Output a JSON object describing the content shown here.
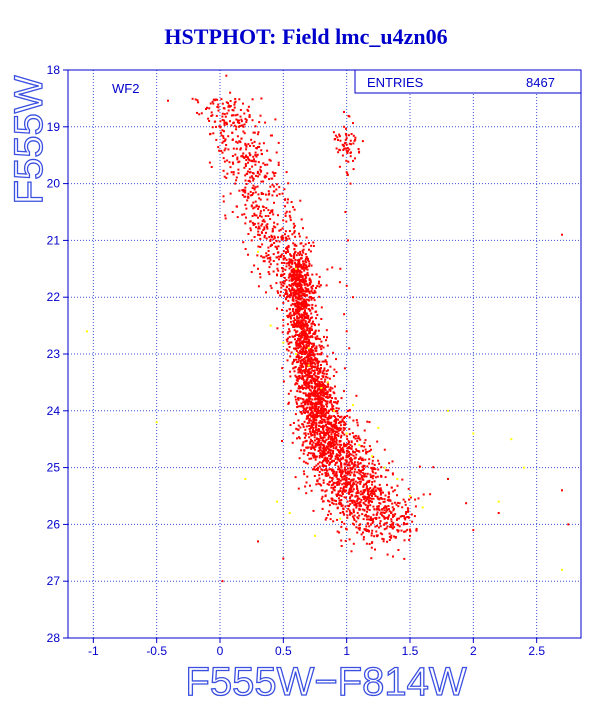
{
  "chart_data": {
    "type": "scatter",
    "title": "HSTPHOT: Field lmc_u4zn06",
    "xlabel": "F555W−F814W",
    "ylabel": "F555W",
    "panel_label": "WF2",
    "stats_box": {
      "label": "ENTRIES",
      "value": "8467"
    },
    "xlim": [
      -1.2,
      2.85
    ],
    "ylim": [
      18,
      28
    ],
    "y_inverted": true,
    "grid": true,
    "grid_style": "dotted",
    "x_ticks": [
      -1,
      -0.5,
      0,
      0.5,
      1,
      1.5,
      2,
      2.5
    ],
    "y_ticks": [
      18,
      19,
      20,
      21,
      22,
      23,
      24,
      25,
      26,
      27,
      28
    ],
    "colors": {
      "axis": "#0000cc",
      "grid": "#3b4fe0",
      "primary_points": "#ff0000",
      "secondary_points": "#ffff00"
    },
    "series": [
      {
        "color": "#ff0000",
        "x": [
          0.05,
          0.08,
          0.1,
          0.15,
          0.2,
          0.25,
          0.05,
          0.12,
          0.18,
          0.25,
          0.3,
          0.35,
          0.1,
          0.2,
          0.3,
          0.4,
          0.45,
          0.5,
          0.25,
          0.35,
          0.45,
          0.5,
          0.55,
          0.3,
          0.4,
          0.5,
          0.55,
          0.6,
          0.45,
          0.5,
          0.55,
          0.6,
          0.65,
          0.5,
          0.55,
          0.6,
          0.65,
          0.7,
          0.55,
          0.6,
          0.65,
          0.7,
          0.75,
          0.6,
          0.65,
          0.7,
          0.75,
          0.8,
          0.65,
          0.7,
          0.75,
          0.8,
          0.85,
          0.7,
          0.75,
          0.8,
          0.85,
          0.9,
          0.95,
          0.75,
          0.8,
          0.85,
          0.9,
          1.0,
          1.05,
          0.85,
          0.9,
          1.0,
          1.1,
          1.2,
          0.9,
          1.0,
          1.1,
          1.2,
          1.3,
          1.0,
          1.1,
          1.2,
          1.3,
          1.4,
          1.1,
          1.2,
          1.3,
          1.4,
          1.5,
          1.2,
          1.3,
          1.4,
          1.5,
          1.35,
          1.45,
          1.55,
          0.98,
          1.0,
          1.02,
          1.05,
          1.0,
          1.03,
          0.99,
          1.01,
          0.95,
          1.0,
          1.05,
          0.98,
          1.0,
          1.02,
          0.6,
          0.62,
          0.64,
          0.66,
          0.58,
          0.61,
          0.63,
          0.67,
          0.69,
          0.71,
          0.73,
          0.77,
          0.79,
          0.81,
          0.83,
          0.87,
          0.72,
          0.76,
          0.78,
          0.82,
          0.88,
          0.92,
          0.94,
          0.96,
          2.7,
          2.7,
          2.75,
          2.2,
          2.0,
          1.8,
          0.02,
          0.3,
          0.5
        ],
        "y": [
          18.1,
          18.4,
          18.8,
          19.0,
          19.3,
          19.6,
          19.9,
          20.0,
          20.2,
          20.4,
          20.6,
          20.8,
          20.5,
          20.7,
          20.9,
          21.1,
          21.3,
          21.5,
          21.0,
          21.3,
          21.6,
          21.8,
          22.0,
          21.5,
          21.8,
          22.1,
          22.3,
          22.5,
          22.2,
          22.4,
          22.6,
          22.8,
          23.0,
          22.5,
          22.7,
          22.9,
          23.1,
          23.3,
          22.8,
          23.0,
          23.2,
          23.4,
          23.6,
          23.1,
          23.3,
          23.5,
          23.7,
          23.9,
          23.4,
          23.6,
          23.8,
          24.0,
          24.2,
          23.7,
          23.9,
          24.1,
          24.3,
          24.5,
          24.7,
          24.0,
          24.2,
          24.4,
          24.6,
          24.8,
          25.0,
          24.3,
          24.5,
          24.8,
          25.1,
          25.3,
          24.6,
          24.9,
          25.2,
          25.4,
          25.6,
          24.9,
          25.2,
          25.5,
          25.7,
          25.9,
          25.2,
          25.5,
          25.8,
          26.0,
          26.1,
          25.6,
          25.9,
          26.1,
          26.2,
          25.8,
          26.0,
          26.1,
          19.0,
          19.2,
          19.4,
          19.6,
          19.8,
          20.0,
          20.5,
          21.0,
          21.5,
          21.8,
          22.0,
          22.3,
          22.6,
          22.9,
          21.8,
          22.0,
          22.2,
          22.4,
          21.6,
          22.6,
          22.8,
          23.0,
          23.2,
          23.4,
          23.6,
          23.8,
          24.0,
          24.2,
          24.4,
          24.6,
          24.1,
          24.3,
          24.5,
          24.7,
          24.9,
          25.1,
          25.3,
          25.5,
          20.9,
          25.4,
          26.0,
          25.8,
          26.1,
          25.2,
          27.0,
          26.3,
          26.6
        ]
      },
      {
        "color": "#ffff00",
        "x": [
          0.3,
          0.4,
          0.5,
          0.6,
          0.7,
          0.8,
          0.9,
          1.0,
          1.1,
          1.2,
          1.3,
          1.4,
          1.5,
          1.6,
          1.8,
          2.0,
          2.2,
          2.3,
          2.4,
          0.6,
          0.7,
          0.85,
          1.05,
          1.25,
          0.2,
          0.45,
          0.55,
          0.75,
          0.95,
          -1.05,
          -0.5,
          2.7
        ],
        "y": [
          21.2,
          22.5,
          22.8,
          23.0,
          23.2,
          23.6,
          24.0,
          24.4,
          24.6,
          24.8,
          25.0,
          25.2,
          25.5,
          25.7,
          24.0,
          24.4,
          25.6,
          24.5,
          25.0,
          21.5,
          22.9,
          23.5,
          23.9,
          24.3,
          25.2,
          25.6,
          25.8,
          26.2,
          25.9,
          22.6,
          24.2,
          26.8
        ]
      }
    ],
    "density_ridge": {
      "color": "#ff0000",
      "points_per_node": 150,
      "x_center": [
        0.6,
        0.62,
        0.64,
        0.66,
        0.68,
        0.7,
        0.72,
        0.74,
        0.76,
        0.78,
        0.8,
        0.85,
        0.9,
        0.95,
        1.0,
        1.05,
        1.1,
        1.2,
        1.3
      ],
      "y_center": [
        21.6,
        21.9,
        22.2,
        22.5,
        22.8,
        23.1,
        23.4,
        23.7,
        23.9,
        24.1,
        24.3,
        24.5,
        24.7,
        24.9,
        25.1,
        25.3,
        25.5,
        25.7,
        25.9
      ],
      "x_spread": [
        0.05,
        0.05,
        0.05,
        0.055,
        0.06,
        0.065,
        0.07,
        0.075,
        0.08,
        0.085,
        0.09,
        0.1,
        0.11,
        0.12,
        0.13,
        0.14,
        0.15,
        0.15,
        0.15
      ],
      "y_spread": [
        0.3,
        0.3,
        0.3,
        0.3,
        0.3,
        0.3,
        0.3,
        0.3,
        0.3,
        0.3,
        0.3,
        0.3,
        0.3,
        0.3,
        0.3,
        0.3,
        0.3,
        0.3,
        0.3
      ]
    },
    "giant_branch": {
      "color": "#ff0000",
      "points": 700,
      "x_range": [
        0.0,
        0.65
      ],
      "y_range": [
        18.5,
        22.0
      ]
    },
    "clump": {
      "color": "#ff0000",
      "points": 60,
      "x_center": 1.0,
      "y_center": 19.3,
      "x_spread": 0.05,
      "y_spread": 0.2
    }
  }
}
